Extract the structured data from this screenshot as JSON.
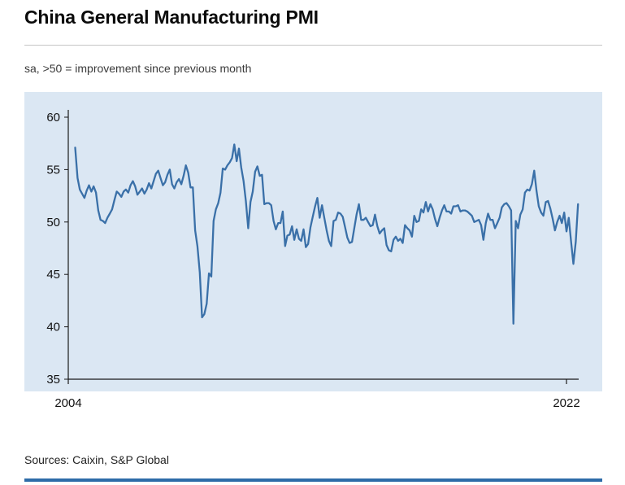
{
  "header": {
    "title": "China General Manufacturing PMI",
    "subtitle": "sa, >50 = improvement since previous month"
  },
  "footer": {
    "source": "Sources: Caixin, S&P Global"
  },
  "chart_data": {
    "type": "line",
    "title": "China General Manufacturing PMI",
    "subtitle": "sa, >50 = improvement since previous month",
    "series_name": "China General Manufacturing PMI (sa, monthly)",
    "frequency": "monthly",
    "start": {
      "year": 2004,
      "month": 4
    },
    "end": {
      "year": 2022,
      "month": 6
    },
    "values": [
      57.1,
      54.2,
      53.1,
      52.7,
      52.3,
      53.0,
      53.5,
      52.9,
      53.4,
      52.8,
      51.1,
      50.2,
      50.1,
      49.9,
      50.4,
      50.8,
      51.2,
      52.1,
      52.9,
      52.7,
      52.4,
      52.9,
      53.1,
      52.8,
      53.5,
      53.9,
      53.4,
      52.6,
      52.9,
      53.2,
      52.7,
      53.1,
      53.7,
      53.2,
      53.9,
      54.6,
      54.9,
      54.2,
      53.5,
      53.8,
      54.5,
      55.0,
      53.6,
      53.2,
      53.8,
      54.1,
      53.6,
      54.4,
      55.4,
      54.7,
      53.3,
      53.3,
      49.2,
      47.7,
      45.2,
      40.9,
      41.2,
      42.2,
      45.1,
      44.8,
      50.1,
      51.2,
      51.8,
      52.8,
      55.1,
      55.0,
      55.4,
      55.7,
      56.1,
      57.4,
      55.8,
      57.0,
      55.2,
      53.9,
      52.0,
      49.4,
      51.9,
      52.9,
      54.8,
      55.3,
      54.4,
      54.5,
      51.7,
      51.8,
      51.8,
      51.6,
      50.1,
      49.3,
      49.9,
      49.9,
      51.0,
      47.7,
      48.7,
      48.8,
      49.6,
      48.3,
      49.3,
      48.4,
      48.2,
      49.3,
      47.6,
      47.9,
      49.5,
      50.5,
      51.5,
      52.3,
      50.4,
      51.6,
      50.4,
      49.2,
      48.2,
      47.7,
      50.1,
      50.2,
      50.9,
      50.8,
      50.5,
      49.5,
      48.5,
      48.0,
      48.1,
      49.4,
      50.7,
      51.7,
      50.2,
      50.2,
      50.4,
      50.0,
      49.6,
      49.7,
      50.7,
      49.6,
      48.9,
      49.2,
      49.4,
      47.8,
      47.3,
      47.2,
      48.3,
      48.6,
      48.2,
      48.4,
      48.0,
      49.7,
      49.4,
      49.2,
      48.6,
      50.6,
      50.0,
      50.1,
      51.2,
      50.9,
      51.9,
      51.0,
      51.7,
      51.2,
      50.3,
      49.6,
      50.4,
      51.1,
      51.6,
      51.0,
      51.0,
      50.8,
      51.5,
      51.5,
      51.6,
      51.0,
      51.1,
      51.1,
      51.0,
      50.8,
      50.6,
      50.0,
      50.1,
      50.2,
      49.7,
      48.3,
      49.9,
      50.8,
      50.2,
      50.2,
      49.4,
      49.9,
      50.4,
      51.4,
      51.7,
      51.8,
      51.5,
      51.1,
      40.3,
      50.1,
      49.4,
      50.7,
      51.2,
      52.8,
      53.1,
      53.0,
      53.6,
      54.9,
      53.0,
      51.5,
      50.9,
      50.6,
      51.9,
      52.0,
      51.3,
      50.3,
      49.2,
      50.0,
      50.6,
      49.9,
      50.9,
      49.1,
      50.4,
      48.1,
      46.0,
      48.1,
      51.7
    ],
    "ylim": [
      35,
      60
    ],
    "yticks": [
      35,
      40,
      45,
      50,
      55,
      60
    ],
    "xticks": [
      {
        "label": "2004",
        "year": 2004,
        "month": 1
      },
      {
        "label": "2022",
        "year": 2022,
        "month": 1
      }
    ],
    "grid": false,
    "legend": "none",
    "annotations": [],
    "colors": {
      "line": "#3a70a8",
      "panel_bg": "#dbe7f3",
      "axis": "#1a1a1a",
      "accent_bar": "#2e6ca8"
    }
  }
}
